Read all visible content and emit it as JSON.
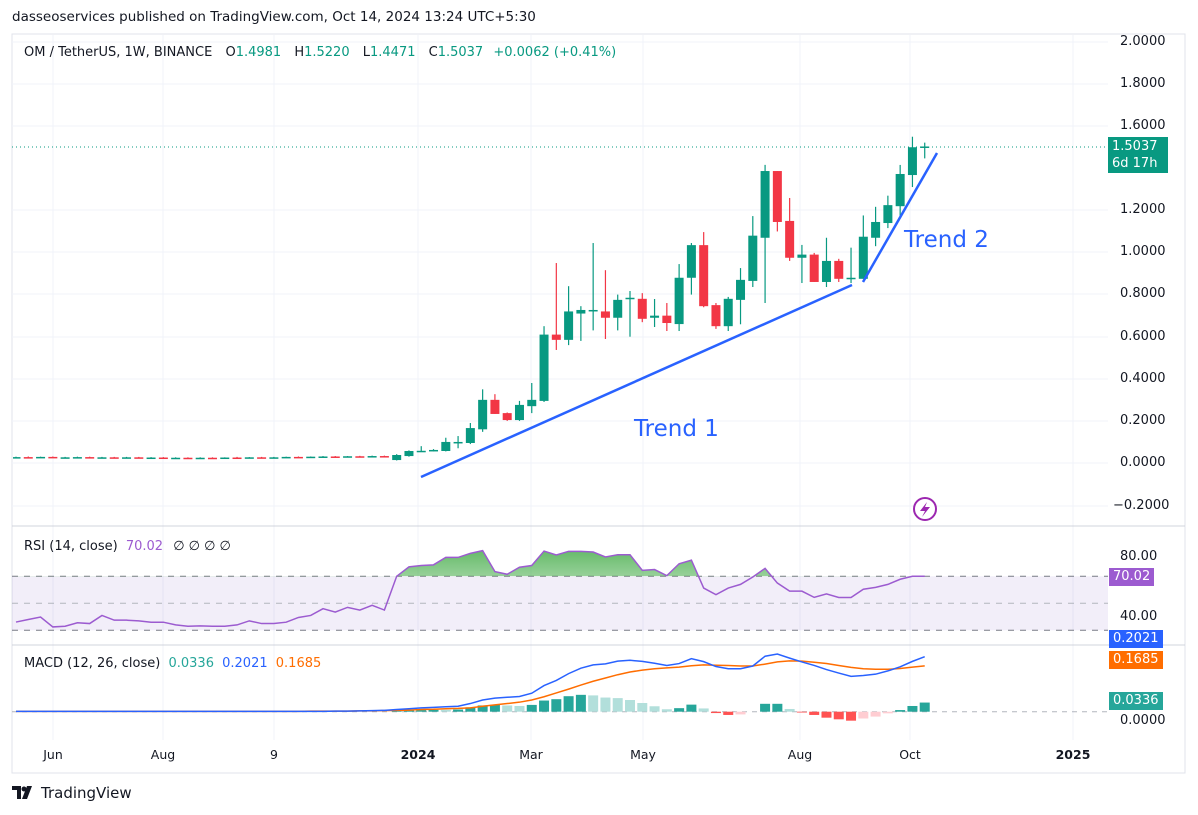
{
  "header": {
    "publish_line": "dasseoservices published on TradingView.com, Oct 14, 2024 13:24 UTC+5:30"
  },
  "legend": {
    "symbol": "OM / TetherUS, 1W, BINANCE",
    "open_key": "O",
    "open": "1.4981",
    "high_key": "H",
    "high": "1.5220",
    "low_key": "L",
    "low": "1.4471",
    "close_key": "C",
    "close": "1.5037",
    "change": "+0.0062 (+0.41%)"
  },
  "price_axis": {
    "labels": [
      "2.0000",
      "1.8000",
      "1.6000",
      "1.2000",
      "1.0000",
      "0.8000",
      "0.6000",
      "0.4000",
      "0.2000",
      "0.0000",
      "−0.2000"
    ],
    "last_price": "1.5037",
    "countdown": "6d 17h"
  },
  "time_axis": {
    "labels": [
      "Jun",
      "Aug",
      "9",
      "2024",
      "Mar",
      "May",
      "Aug",
      "Oct",
      "2025"
    ]
  },
  "annotations": {
    "trend1": "Trend 1",
    "trend2": "Trend 2"
  },
  "rsi": {
    "title": "RSI (14, close)",
    "value": "70.02",
    "extras": "∅  ∅  ∅  ∅",
    "axis_labels": [
      "80.00",
      "40.00"
    ],
    "values": [
      36.1,
      38,
      39.8,
      32.5,
      33,
      35.6,
      35,
      41,
      37.5,
      37.5,
      37,
      36,
      36,
      34,
      33,
      33.3,
      33,
      33,
      34,
      37,
      35,
      35,
      36,
      39.5,
      41,
      46,
      43.5,
      47,
      45,
      48.5,
      45,
      70,
      77,
      78,
      78.5,
      84,
      84,
      87,
      89,
      73.5,
      71.5,
      76.7,
      78,
      88.7,
      85.8,
      88.5,
      88.5,
      88,
      84.3,
      86,
      86,
      74.4,
      75,
      70.5,
      79.3,
      82,
      61.3,
      56.4,
      61.3,
      64,
      69.5,
      75.9,
      65,
      59,
      59,
      54.4,
      57,
      54.3,
      54.3,
      60.4,
      61.8,
      64,
      67.8,
      70,
      70.02
    ]
  },
  "macd": {
    "title": "MACD (12, 26, close)",
    "hist_value": "0.0336",
    "macd_value": "0.2021",
    "signal_value": "0.1685",
    "zero_label": "0.0000"
  },
  "colors": {
    "up": "#089981",
    "down": "#f23645",
    "rsi": "#9c5bd0",
    "macd": "#2962ff",
    "signal": "#ff6d00",
    "hist": "#26a69a"
  },
  "brand": {
    "name": "TradingView"
  },
  "chart_data": {
    "type": "candlestick",
    "interval": "1W",
    "ylim": [
      -0.25,
      2.05
    ],
    "candles_ohlc": [
      [
        0.026,
        0.03,
        0.024,
        0.028
      ],
      [
        0.028,
        0.031,
        0.025,
        0.027
      ],
      [
        0.027,
        0.03,
        0.024,
        0.029
      ],
      [
        0.029,
        0.031,
        0.026,
        0.026
      ],
      [
        0.026,
        0.029,
        0.024,
        0.027
      ],
      [
        0.027,
        0.03,
        0.025,
        0.028
      ],
      [
        0.028,
        0.03,
        0.025,
        0.025
      ],
      [
        0.025,
        0.029,
        0.023,
        0.027
      ],
      [
        0.027,
        0.029,
        0.024,
        0.026
      ],
      [
        0.026,
        0.029,
        0.024,
        0.027
      ],
      [
        0.027,
        0.029,
        0.024,
        0.025
      ],
      [
        0.025,
        0.028,
        0.023,
        0.026
      ],
      [
        0.026,
        0.028,
        0.023,
        0.024
      ],
      [
        0.024,
        0.027,
        0.022,
        0.025
      ],
      [
        0.025,
        0.027,
        0.022,
        0.024
      ],
      [
        0.024,
        0.027,
        0.022,
        0.025
      ],
      [
        0.025,
        0.027,
        0.022,
        0.024
      ],
      [
        0.024,
        0.027,
        0.022,
        0.026
      ],
      [
        0.026,
        0.029,
        0.024,
        0.025
      ],
      [
        0.025,
        0.028,
        0.023,
        0.027
      ],
      [
        0.027,
        0.029,
        0.024,
        0.026
      ],
      [
        0.026,
        0.029,
        0.024,
        0.027
      ],
      [
        0.027,
        0.03,
        0.025,
        0.029
      ],
      [
        0.029,
        0.031,
        0.026,
        0.028
      ],
      [
        0.028,
        0.031,
        0.026,
        0.03
      ],
      [
        0.03,
        0.033,
        0.027,
        0.031
      ],
      [
        0.031,
        0.033,
        0.028,
        0.029
      ],
      [
        0.029,
        0.033,
        0.027,
        0.032
      ],
      [
        0.032,
        0.034,
        0.029,
        0.031
      ],
      [
        0.031,
        0.035,
        0.029,
        0.033
      ],
      [
        0.033,
        0.035,
        0.03,
        0.03
      ],
      [
        0.014,
        0.042,
        0.012,
        0.038
      ],
      [
        0.033,
        0.06,
        0.03,
        0.057
      ],
      [
        0.057,
        0.08,
        0.055,
        0.058
      ],
      [
        0.059,
        0.066,
        0.055,
        0.062
      ],
      [
        0.057,
        0.12,
        0.055,
        0.1
      ],
      [
        0.1,
        0.128,
        0.07,
        0.1
      ],
      [
        0.095,
        0.19,
        0.09,
        0.166
      ],
      [
        0.16,
        0.35,
        0.148,
        0.3
      ],
      [
        0.3,
        0.327,
        0.233,
        0.233
      ],
      [
        0.237,
        0.24,
        0.2,
        0.204
      ],
      [
        0.204,
        0.295,
        0.2,
        0.276
      ],
      [
        0.27,
        0.38,
        0.237,
        0.3
      ],
      [
        0.295,
        0.65,
        0.29,
        0.61
      ],
      [
        0.61,
        0.95,
        0.537,
        0.585
      ],
      [
        0.585,
        0.84,
        0.56,
        0.72
      ],
      [
        0.71,
        0.745,
        0.58,
        0.727
      ],
      [
        0.727,
        1.045,
        0.63,
        0.727
      ],
      [
        0.72,
        0.916,
        0.589,
        0.69
      ],
      [
        0.69,
        0.8,
        0.63,
        0.775
      ],
      [
        0.78,
        0.817,
        0.6,
        0.785
      ],
      [
        0.78,
        0.807,
        0.669,
        0.685
      ],
      [
        0.69,
        0.779,
        0.646,
        0.7
      ],
      [
        0.7,
        0.76,
        0.627,
        0.665
      ],
      [
        0.66,
        0.945,
        0.627,
        0.88
      ],
      [
        0.88,
        1.045,
        0.8,
        1.035
      ],
      [
        1.035,
        1.097,
        0.74,
        0.745
      ],
      [
        0.75,
        0.76,
        0.637,
        0.65
      ],
      [
        0.65,
        0.789,
        0.627,
        0.78
      ],
      [
        0.775,
        0.926,
        0.659,
        0.87
      ],
      [
        0.865,
        1.173,
        0.836,
        1.08
      ],
      [
        1.07,
        1.416,
        0.76,
        1.387
      ],
      [
        1.387,
        1.387,
        1.1,
        1.145
      ],
      [
        1.15,
        1.259,
        0.96,
        0.975
      ],
      [
        0.975,
        1.036,
        0.855,
        0.99
      ],
      [
        0.99,
        0.998,
        0.86,
        0.86
      ],
      [
        0.86,
        1.07,
        0.836,
        0.96
      ],
      [
        0.96,
        0.97,
        0.86,
        0.875
      ],
      [
        0.875,
        1.023,
        0.855,
        0.88
      ],
      [
        0.875,
        1.176,
        0.875,
        1.075
      ],
      [
        1.07,
        1.217,
        1.03,
        1.145
      ],
      [
        1.14,
        1.27,
        1.116,
        1.225
      ],
      [
        1.22,
        1.416,
        1.173,
        1.373
      ],
      [
        1.368,
        1.55,
        1.311,
        1.5
      ],
      [
        1.4981,
        1.522,
        1.4471,
        1.5037
      ]
    ],
    "macd_line": [
      0.001,
      0.001,
      0.001,
      0.001,
      0.001,
      0.001,
      0.001,
      0.001,
      0.001,
      0.001,
      0.001,
      0.001,
      0.001,
      0.001,
      0.001,
      0.001,
      0.001,
      0.001,
      0.001,
      0.001,
      0.001,
      0.001,
      0.001,
      0.001,
      0.001,
      0.001,
      0.002,
      0.002,
      0.003,
      0.004,
      0.005,
      0.008,
      0.011,
      0.014,
      0.016,
      0.018,
      0.02,
      0.03,
      0.043,
      0.05,
      0.053,
      0.056,
      0.068,
      0.096,
      0.115,
      0.14,
      0.16,
      0.172,
      0.176,
      0.186,
      0.189,
      0.185,
      0.178,
      0.17,
      0.177,
      0.195,
      0.184,
      0.166,
      0.158,
      0.158,
      0.168,
      0.204,
      0.212,
      0.197,
      0.183,
      0.17,
      0.155,
      0.142,
      0.13,
      0.133,
      0.138,
      0.15,
      0.165,
      0.185,
      0.2021
    ],
    "signal_line": [
      0.001,
      0.001,
      0.001,
      0.001,
      0.001,
      0.001,
      0.001,
      0.001,
      0.001,
      0.001,
      0.001,
      0.001,
      0.001,
      0.001,
      0.001,
      0.001,
      0.001,
      0.001,
      0.001,
      0.001,
      0.001,
      0.001,
      0.001,
      0.001,
      0.002,
      0.002,
      0.002,
      0.002,
      0.003,
      0.003,
      0.004,
      0.005,
      0.006,
      0.008,
      0.009,
      0.011,
      0.012,
      0.014,
      0.02,
      0.025,
      0.03,
      0.035,
      0.043,
      0.055,
      0.069,
      0.083,
      0.098,
      0.112,
      0.124,
      0.136,
      0.146,
      0.153,
      0.158,
      0.161,
      0.164,
      0.169,
      0.172,
      0.171,
      0.17,
      0.168,
      0.168,
      0.175,
      0.183,
      0.187,
      0.186,
      0.182,
      0.177,
      0.17,
      0.163,
      0.158,
      0.156,
      0.156,
      0.159,
      0.164,
      0.1685
    ],
    "rsi_levels": [
      70,
      50,
      30
    ]
  }
}
